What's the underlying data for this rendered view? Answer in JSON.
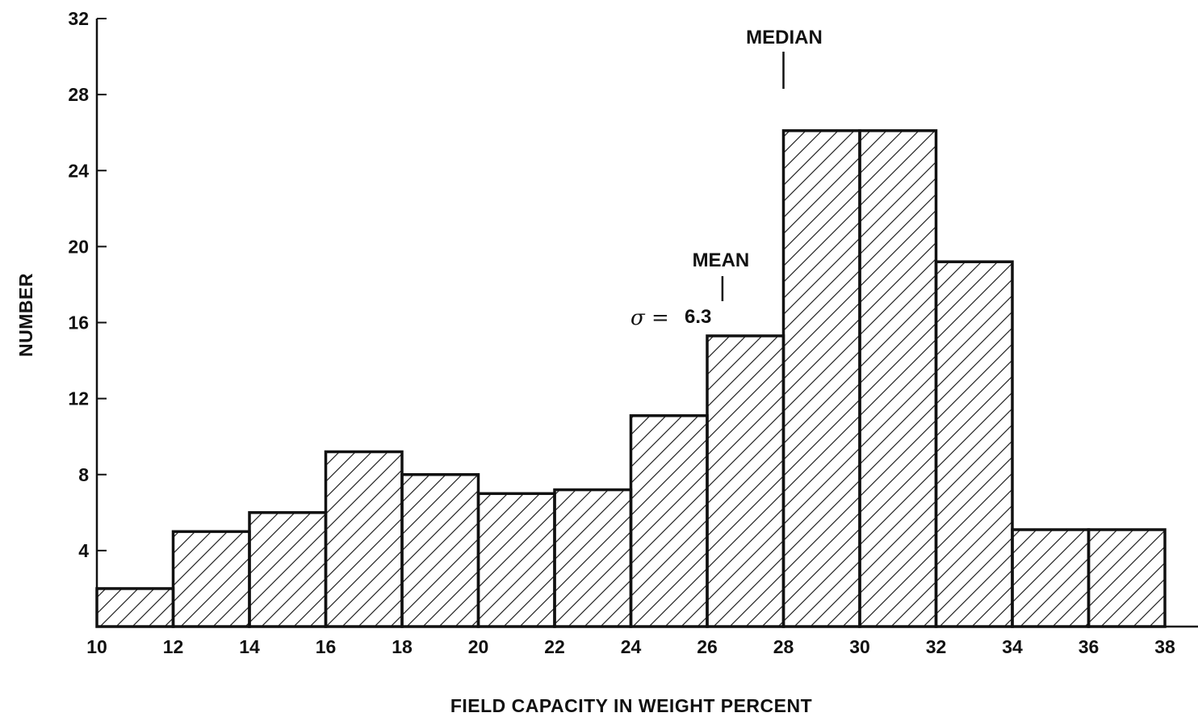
{
  "chart_data": {
    "type": "bar",
    "subtype": "histogram",
    "xlabel": "FIELD CAPACITY IN WEIGHT PERCENT",
    "ylabel": "NUMBER",
    "xlim": [
      10,
      38
    ],
    "ylim": [
      0,
      32
    ],
    "x_ticks": [
      10,
      12,
      14,
      16,
      18,
      20,
      22,
      24,
      26,
      28,
      30,
      32,
      34,
      36,
      38
    ],
    "y_ticks": [
      4,
      8,
      12,
      16,
      20,
      24,
      28,
      32
    ],
    "bins": [
      {
        "from": 10,
        "to": 12,
        "value": 2
      },
      {
        "from": 12,
        "to": 14,
        "value": 5
      },
      {
        "from": 14,
        "to": 16,
        "value": 6
      },
      {
        "from": 16,
        "to": 18,
        "value": 9.2
      },
      {
        "from": 18,
        "to": 20,
        "value": 8
      },
      {
        "from": 20,
        "to": 22,
        "value": 7
      },
      {
        "from": 22,
        "to": 24,
        "value": 7.2
      },
      {
        "from": 24,
        "to": 26,
        "value": 11.1
      },
      {
        "from": 26,
        "to": 28,
        "value": 15.3
      },
      {
        "from": 28,
        "to": 30,
        "value": 26.1
      },
      {
        "from": 30,
        "to": 32,
        "value": 26.1
      },
      {
        "from": 32,
        "to": 34,
        "value": 19.2
      },
      {
        "from": 34,
        "to": 36,
        "value": 5.1
      },
      {
        "from": 36,
        "to": 38,
        "value": 5.1
      }
    ],
    "fill": "diagonal-hatch",
    "grid": false,
    "legend": "none",
    "annotations": [
      {
        "label": "MEDIAN",
        "x": 28
      },
      {
        "label": "MEAN",
        "x": 26.4
      },
      {
        "label": "6.3",
        "symbol": "σ ="
      }
    ]
  }
}
